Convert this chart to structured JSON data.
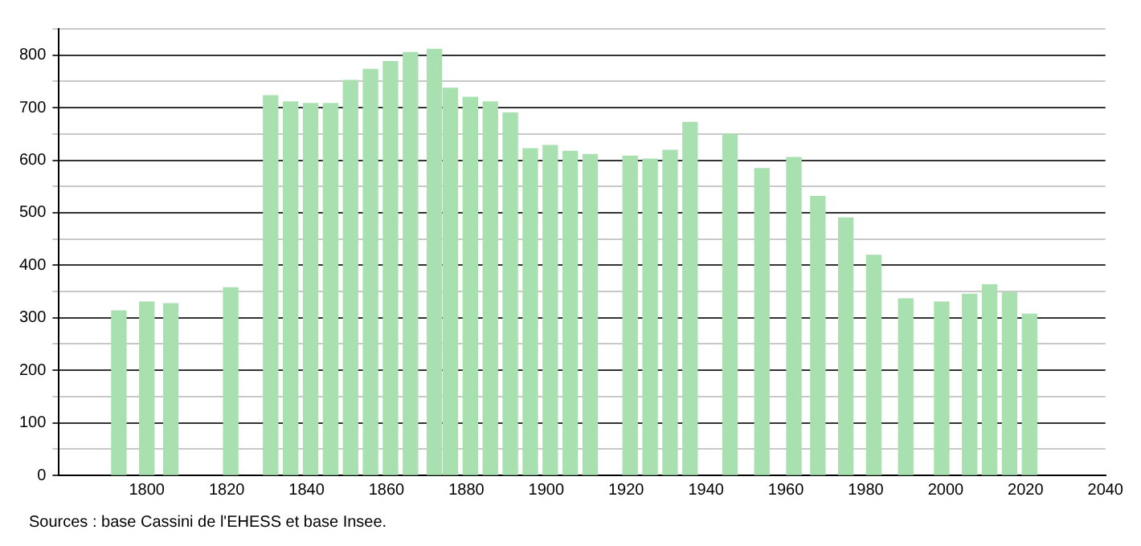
{
  "chart_data": {
    "type": "bar",
    "x": [
      1793,
      1800,
      1806,
      1821,
      1831,
      1836,
      1841,
      1846,
      1851,
      1856,
      1861,
      1866,
      1872,
      1876,
      1881,
      1886,
      1891,
      1896,
      1901,
      1906,
      1911,
      1921,
      1926,
      1931,
      1936,
      1946,
      1954,
      1962,
      1968,
      1975,
      1982,
      1990,
      1999,
      2006,
      2011,
      2016,
      2021
    ],
    "values": [
      313,
      330,
      327,
      357,
      723,
      711,
      708,
      708,
      752,
      773,
      788,
      805,
      811,
      737,
      720,
      711,
      690,
      622,
      628,
      617,
      611,
      608,
      602,
      619,
      672,
      649,
      584,
      605,
      531,
      490,
      419,
      336,
      330,
      345,
      363,
      348,
      307
    ],
    "color": "#a8e0b0",
    "xlim": [
      1778,
      2040
    ],
    "xticks": [
      1800,
      1820,
      1840,
      1860,
      1880,
      1900,
      1920,
      1940,
      1960,
      1980,
      2000,
      2020,
      2040
    ],
    "ylim": [
      0,
      850
    ],
    "yticks": [
      0,
      {
        "value": 50,
        "label": null
      },
      100,
      {
        "value": 150,
        "label": null
      },
      200,
      {
        "value": 250,
        "label": null
      },
      300,
      {
        "value": 350,
        "label": null
      },
      400,
      {
        "value": 450,
        "label": null
      },
      500,
      {
        "value": 550,
        "label": null
      },
      600,
      {
        "value": 650,
        "label": null
      },
      700,
      {
        "value": 750,
        "label": null
      },
      800,
      {
        "value": 850,
        "label": null
      }
    ],
    "grid": "y",
    "legend": false,
    "annotations": [
      "Sources : base Cassini de l'EHESS et base Insee."
    ]
  }
}
